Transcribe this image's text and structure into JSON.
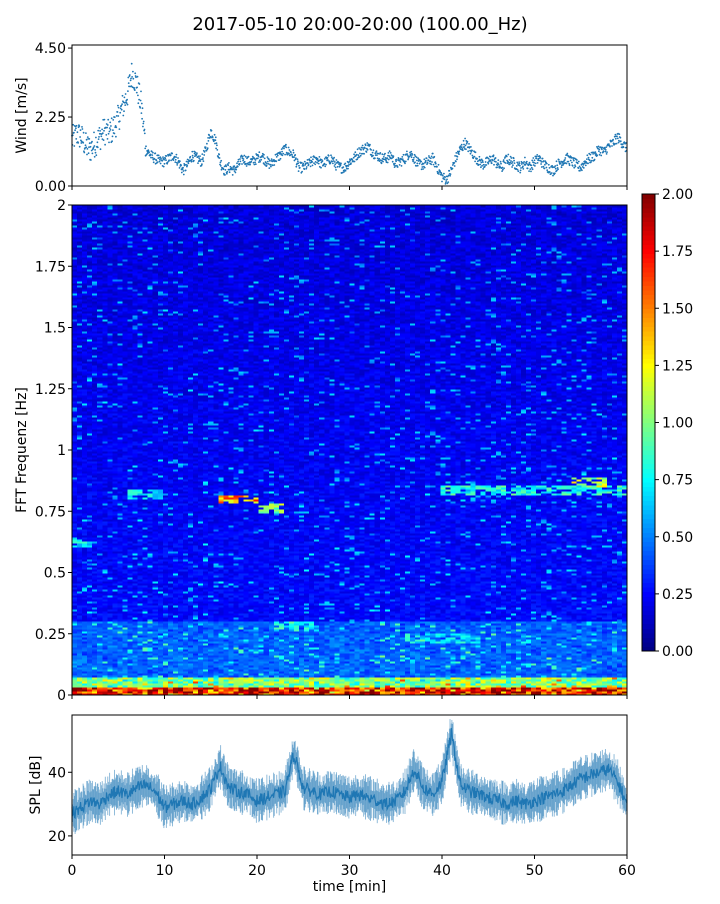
{
  "figure_title": "2017-05-10 20:00-20:00 (100.00_Hz)",
  "chart_data": [
    {
      "id": "wind",
      "type": "scatter",
      "ylabel": "Wind [m/s]",
      "xlim": [
        0,
        60
      ],
      "ylim": [
        0,
        4.6
      ],
      "yticks": [
        "0.00",
        "2.25",
        "4.50"
      ],
      "ytick_values": [
        0,
        2.25,
        4.5
      ],
      "series": [
        {
          "color": "#1f77b4",
          "x": [
            0,
            0.5,
            1,
            1.5,
            2,
            2.5,
            3,
            3.5,
            4,
            4.5,
            5,
            5.5,
            6,
            6.5,
            7,
            7.5,
            8,
            8.5,
            9,
            9.5,
            10,
            10.5,
            11,
            11.5,
            12,
            12.5,
            13,
            13.5,
            14,
            14.5,
            15,
            15.5,
            16,
            16.5,
            17,
            17.5,
            18,
            18.5,
            19,
            19.5,
            20,
            20.5,
            21,
            21.5,
            22,
            22.5,
            23,
            23.5,
            24,
            24.5,
            25,
            25.5,
            26,
            26.5,
            27,
            27.5,
            28,
            28.5,
            29,
            29.5,
            30,
            30.5,
            31,
            31.5,
            32,
            32.5,
            33,
            33.5,
            34,
            34.5,
            35,
            35.5,
            36,
            36.5,
            37,
            37.5,
            38,
            38.5,
            39,
            39.5,
            40,
            40.5,
            41,
            41.5,
            42,
            42.5,
            43,
            43.5,
            44,
            44.5,
            45,
            45.5,
            46,
            46.5,
            47,
            47.5,
            48,
            48.5,
            49,
            49.5,
            50,
            50.5,
            51,
            51.5,
            52,
            52.5,
            53,
            53.5,
            54,
            54.5,
            55,
            55.5,
            56,
            56.5,
            57,
            57.5,
            58,
            58.5,
            59,
            59.5,
            60
          ],
          "y": [
            1.5,
            1.7,
            1.6,
            1.3,
            1.2,
            1.4,
            1.6,
            1.8,
            1.7,
            1.9,
            2.2,
            2.6,
            3.0,
            3.7,
            3.3,
            2.6,
            1.2,
            1.0,
            0.9,
            0.8,
            0.8,
            0.9,
            1.0,
            0.8,
            0.5,
            0.7,
            1.0,
            0.9,
            0.8,
            1.2,
            1.8,
            1.5,
            0.8,
            0.5,
            0.6,
            0.5,
            0.7,
            0.9,
            0.8,
            0.8,
            0.9,
            1.0,
            0.8,
            0.7,
            0.9,
            1.0,
            1.2,
            1.1,
            1.0,
            0.6,
            0.6,
            0.7,
            0.8,
            0.9,
            0.7,
            0.8,
            0.9,
            0.7,
            0.6,
            0.6,
            0.8,
            0.9,
            1.1,
            1.2,
            1.3,
            1.1,
            1.0,
            0.9,
            0.9,
            1.0,
            0.7,
            0.8,
            0.9,
            1.1,
            0.9,
            0.7,
            0.7,
            0.8,
            0.9,
            0.6,
            0.3,
            0.2,
            0.5,
            0.9,
            1.2,
            1.4,
            1.2,
            1.0,
            0.8,
            0.7,
            0.8,
            0.9,
            0.7,
            0.6,
            0.9,
            0.8,
            0.7,
            0.6,
            0.8,
            0.6,
            0.8,
            0.9,
            0.7,
            0.6,
            0.5,
            0.7,
            0.8,
            0.9,
            0.8,
            0.7,
            0.6,
            0.8,
            0.9,
            1.0,
            1.2,
            1.1,
            1.3,
            1.4,
            1.6,
            1.4,
            1.2
          ]
        }
      ]
    },
    {
      "id": "spectrogram",
      "type": "heatmap",
      "ylabel": "FFT Frequenz [Hz]",
      "xlim": [
        0,
        60
      ],
      "ylim": [
        0,
        2
      ],
      "yticks": [
        "0",
        "0.25",
        "0.5",
        "0.75",
        "1",
        "1.25",
        "1.5",
        "1.75",
        "2"
      ],
      "ytick_values": [
        0,
        0.25,
        0.5,
        0.75,
        1,
        1.25,
        1.5,
        1.75,
        2
      ],
      "colorbar": {
        "colormap": "jet",
        "range": [
          0,
          2
        ],
        "ticks": [
          "0.00",
          "0.25",
          "0.50",
          "0.75",
          "1.00",
          "1.25",
          "1.50",
          "1.75",
          "2.00"
        ],
        "tick_values": [
          0,
          0.25,
          0.5,
          0.75,
          1,
          1.25,
          1.5,
          1.75,
          2
        ]
      },
      "bands": [
        {
          "x": [
            6,
            10
          ],
          "freq": 0.82,
          "value": 0.8
        },
        {
          "x": [
            16,
            20
          ],
          "freq": 0.8,
          "value": 1.6
        },
        {
          "x": [
            20,
            23
          ],
          "freq": 0.76,
          "value": 1.1
        },
        {
          "x": [
            40,
            60
          ],
          "freq": 0.84,
          "value": 0.9
        },
        {
          "x": [
            54,
            58
          ],
          "freq": 0.87,
          "value": 1.2
        },
        {
          "x": [
            0,
            2
          ],
          "freq": 0.62,
          "value": 0.8
        },
        {
          "x": [
            22,
            26
          ],
          "freq": 0.28,
          "value": 0.9
        },
        {
          "x": [
            36,
            44
          ],
          "freq": 0.23,
          "value": 0.8
        }
      ]
    },
    {
      "id": "spl",
      "type": "line",
      "ylabel": "SPL [dB]",
      "xlabel": "time [min]",
      "xlim": [
        0,
        60
      ],
      "ylim": [
        14,
        58
      ],
      "yticks": [
        "20",
        "40"
      ],
      "ytick_values": [
        20,
        40
      ],
      "xticks": [
        "0",
        "10",
        "20",
        "30",
        "40",
        "50",
        "60"
      ],
      "xtick_values": [
        0,
        10,
        20,
        30,
        40,
        50,
        60
      ],
      "series": [
        {
          "color": "#1f77b4",
          "x": [
            0,
            1,
            2,
            3,
            4,
            5,
            6,
            7,
            8,
            9,
            10,
            11,
            12,
            13,
            14,
            15,
            16,
            17,
            18,
            19,
            20,
            21,
            22,
            23,
            24,
            25,
            26,
            27,
            28,
            29,
            30,
            31,
            32,
            33,
            34,
            35,
            36,
            37,
            38,
            39,
            40,
            41,
            42,
            43,
            44,
            45,
            46,
            47,
            48,
            49,
            50,
            51,
            52,
            53,
            54,
            55,
            56,
            57,
            58,
            59,
            60
          ],
          "y": [
            27,
            29,
            31,
            30,
            33,
            34,
            33,
            35,
            36,
            34,
            29,
            30,
            31,
            30,
            32,
            35,
            42,
            35,
            34,
            33,
            31,
            32,
            33,
            34,
            46,
            35,
            34,
            33,
            34,
            33,
            32,
            33,
            32,
            31,
            30,
            31,
            34,
            41,
            35,
            33,
            37,
            52,
            36,
            34,
            33,
            32,
            31,
            30,
            31,
            30,
            31,
            32,
            33,
            34,
            36,
            38,
            39,
            40,
            41,
            37,
            30
          ],
          "band": 4
        }
      ]
    }
  ]
}
